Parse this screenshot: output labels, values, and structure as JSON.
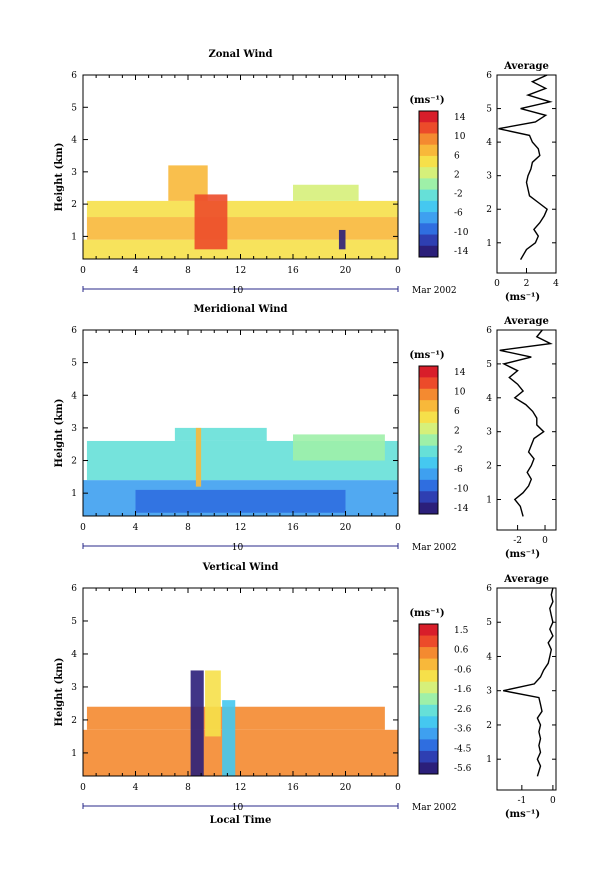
{
  "chart_data": [
    {
      "type": "heatmap",
      "title": "Zonal Wind",
      "ylabel": "Height (km)",
      "xlabel": "",
      "xlim": [
        0,
        24
      ],
      "ylim": [
        0.3,
        6
      ],
      "xticks": [
        "0",
        "4",
        "8",
        "12",
        "16",
        "20",
        "0"
      ],
      "yticks": [
        "1",
        "2",
        "3",
        "4",
        "5",
        "6"
      ],
      "date_label": "Mar 2002",
      "day_label": "10",
      "colorbar": {
        "unit": "(ms⁻¹)",
        "ticks": [
          "14",
          "10",
          "6",
          "2",
          "-2",
          "-6",
          "-10",
          "-14"
        ],
        "vmin": -14,
        "vmax": 14
      },
      "coverage": [
        {
          "x0": 0,
          "x1": 24,
          "y0": 0.3,
          "y1": 0.9,
          "value": 5
        },
        {
          "x0": 0.3,
          "x1": 24,
          "y0": 0.9,
          "y1": 1.6,
          "value": 6
        },
        {
          "x0": 0.3,
          "x1": 24,
          "y0": 1.6,
          "y1": 2.1,
          "value": 4
        },
        {
          "x0": 6.5,
          "x1": 9.5,
          "y0": 2.1,
          "y1": 3.2,
          "value": 7
        },
        {
          "x0": 8.5,
          "x1": 11,
          "y0": 0.6,
          "y1": 2.3,
          "value": 10
        },
        {
          "x0": 16,
          "x1": 21,
          "y0": 2.1,
          "y1": 2.6,
          "value": 3
        },
        {
          "x0": 19.5,
          "x1": 20,
          "y0": 0.6,
          "y1": 1.2,
          "value": -12
        }
      ],
      "profile": {
        "title": "Average",
        "xlabel": "(ms⁻¹)",
        "xlim": [
          0,
          4
        ],
        "xticks": [
          "0",
          "2",
          "4"
        ],
        "heights": [
          0.5,
          0.8,
          1.0,
          1.2,
          1.4,
          1.6,
          1.8,
          2.0,
          2.2,
          2.4,
          2.6,
          2.8,
          3.0,
          3.2,
          3.4,
          3.6,
          3.8,
          4.0,
          4.2,
          4.4,
          4.6,
          4.8,
          5.0,
          5.2,
          5.4,
          5.6,
          5.8,
          6.0
        ],
        "values": [
          1.6,
          2.0,
          2.6,
          2.8,
          2.5,
          2.9,
          3.2,
          3.4,
          2.8,
          2.2,
          2.1,
          2.0,
          2.1,
          2.3,
          2.4,
          2.9,
          2.8,
          2.4,
          2.2,
          0.1,
          2.6,
          3.3,
          1.6,
          3.6,
          2.1,
          3.3,
          2.4,
          3.4
        ]
      }
    },
    {
      "type": "heatmap",
      "title": "Meridional Wind",
      "ylabel": "Height (km)",
      "xlabel": "",
      "xlim": [
        0,
        24
      ],
      "ylim": [
        0.3,
        6
      ],
      "xticks": [
        "0",
        "4",
        "8",
        "12",
        "16",
        "20",
        "0"
      ],
      "yticks": [
        "1",
        "2",
        "3",
        "4",
        "5",
        "6"
      ],
      "date_label": "Mar 2002",
      "day_label": "10",
      "colorbar": {
        "unit": "(ms⁻¹)",
        "ticks": [
          "14",
          "10",
          "6",
          "2",
          "-2",
          "-6",
          "-10",
          "-14"
        ],
        "vmin": -14,
        "vmax": 14
      },
      "coverage": [
        {
          "x0": 0,
          "x1": 24,
          "y0": 0.3,
          "y1": 1.4,
          "value": -6
        },
        {
          "x0": 4,
          "x1": 20,
          "y0": 0.4,
          "y1": 1.1,
          "value": -9
        },
        {
          "x0": 0.3,
          "x1": 24,
          "y0": 1.4,
          "y1": 2.6,
          "value": -3
        },
        {
          "x0": 7,
          "x1": 14,
          "y0": 2.6,
          "y1": 3.0,
          "value": -2
        },
        {
          "x0": 16,
          "x1": 23,
          "y0": 2.0,
          "y1": 2.8,
          "value": 1
        },
        {
          "x0": 8.6,
          "x1": 9.0,
          "y0": 1.2,
          "y1": 3.0,
          "value": 7
        }
      ],
      "profile": {
        "title": "Average",
        "xlabel": "(ms⁻¹)",
        "xlim": [
          -3.5,
          0.8
        ],
        "xticks": [
          "-2",
          "0"
        ],
        "heights": [
          0.5,
          0.8,
          1.0,
          1.2,
          1.4,
          1.6,
          1.8,
          2.0,
          2.2,
          2.4,
          2.6,
          2.8,
          3.0,
          3.2,
          3.4,
          3.6,
          3.8,
          4.0,
          4.2,
          4.4,
          4.6,
          4.8,
          5.0,
          5.2,
          5.4,
          5.6,
          5.8,
          6.0
        ],
        "values": [
          -1.6,
          -1.8,
          -2.2,
          -1.6,
          -1.2,
          -1.0,
          -1.3,
          -1.0,
          -0.8,
          -1.2,
          -1.0,
          -0.8,
          -0.1,
          -0.6,
          -0.6,
          -0.9,
          -1.4,
          -2.2,
          -1.6,
          -2.0,
          -2.6,
          -2.0,
          -3.0,
          -1.0,
          -3.3,
          0.4,
          -0.6,
          -0.2
        ]
      }
    },
    {
      "type": "heatmap",
      "title": "Vertical Wind",
      "ylabel": "Height (km)",
      "xlabel": "Local Time",
      "xlim": [
        0,
        24
      ],
      "ylim": [
        0.3,
        6
      ],
      "xticks": [
        "0",
        "4",
        "8",
        "12",
        "16",
        "20",
        "0"
      ],
      "yticks": [
        "1",
        "2",
        "3",
        "4",
        "5",
        "6"
      ],
      "date_label": "Mar 2002",
      "day_label": "10",
      "colorbar": {
        "unit": "(ms⁻¹)",
        "ticks": [
          "1.5",
          "0.6",
          "-0.6",
          "-1.6",
          "-2.6",
          "-3.6",
          "-4.5",
          "-5.6"
        ],
        "vmin": -6,
        "vmax": 2
      },
      "coverage": [
        {
          "x0": 0,
          "x1": 24,
          "y0": 0.3,
          "y1": 1.7,
          "value": 0.2
        },
        {
          "x0": 0.3,
          "x1": 23,
          "y0": 1.7,
          "y1": 2.4,
          "value": 0.3
        },
        {
          "x0": 8.2,
          "x1": 9.2,
          "y0": 0.3,
          "y1": 3.5,
          "value": -5.6
        },
        {
          "x0": 10.6,
          "x1": 11.6,
          "y0": 0.3,
          "y1": 2.6,
          "value": -3.0
        },
        {
          "x0": 9.3,
          "x1": 10.5,
          "y0": 1.5,
          "y1": 3.5,
          "value": -0.6
        }
      ],
      "profile": {
        "title": "Average",
        "xlabel": "(ms⁻¹)",
        "xlim": [
          -1.8,
          0.1
        ],
        "xticks": [
          "-1",
          "0"
        ],
        "heights": [
          0.5,
          0.8,
          1.0,
          1.2,
          1.4,
          1.6,
          1.8,
          2.0,
          2.2,
          2.4,
          2.6,
          2.8,
          3.0,
          3.2,
          3.4,
          3.6,
          3.8,
          4.0,
          4.2,
          4.4,
          4.6,
          4.8,
          5.0,
          5.2,
          5.4,
          5.6,
          5.8,
          6.0
        ],
        "values": [
          -0.5,
          -0.4,
          -0.5,
          -0.4,
          -0.45,
          -0.4,
          -0.45,
          -0.4,
          -0.5,
          -0.35,
          -0.4,
          -0.45,
          -1.6,
          -0.6,
          -0.4,
          -0.3,
          -0.15,
          -0.1,
          -0.05,
          -0.15,
          0.0,
          -0.1,
          0.0,
          -0.05,
          -0.1,
          0.0,
          -0.05,
          0.0
        ]
      }
    }
  ]
}
